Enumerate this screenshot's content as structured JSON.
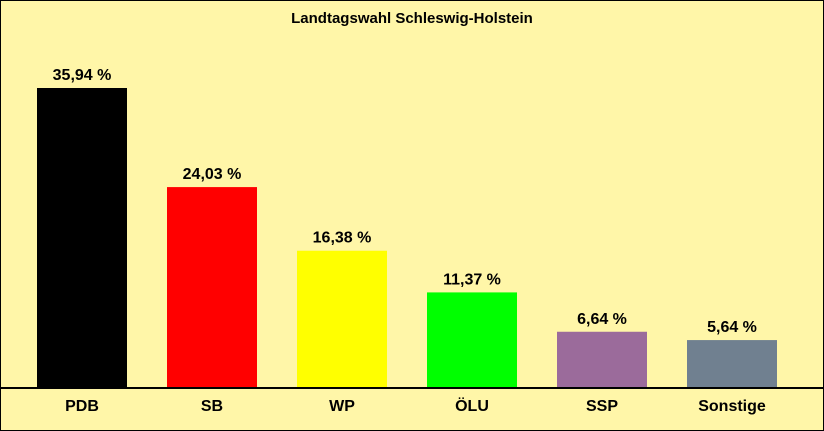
{
  "chart_data": {
    "type": "bar",
    "title": "Landtagswahl Schleswig-Holstein",
    "categories": [
      "PDB",
      "SB",
      "WP",
      "ÖLU",
      "SSP",
      "Sonstige"
    ],
    "values": [
      35.94,
      24.03,
      16.38,
      11.37,
      6.64,
      5.64
    ],
    "value_labels": [
      "35,94 %",
      "24,03 %",
      "16,38 %",
      "11,37 %",
      "6,64 %",
      "5,64 %"
    ],
    "colors": [
      "#000000",
      "#ff0000",
      "#ffff00",
      "#00ff00",
      "#9b6b9b",
      "#708090"
    ],
    "background": "#fff6a8",
    "grid": false,
    "legend": "none"
  }
}
